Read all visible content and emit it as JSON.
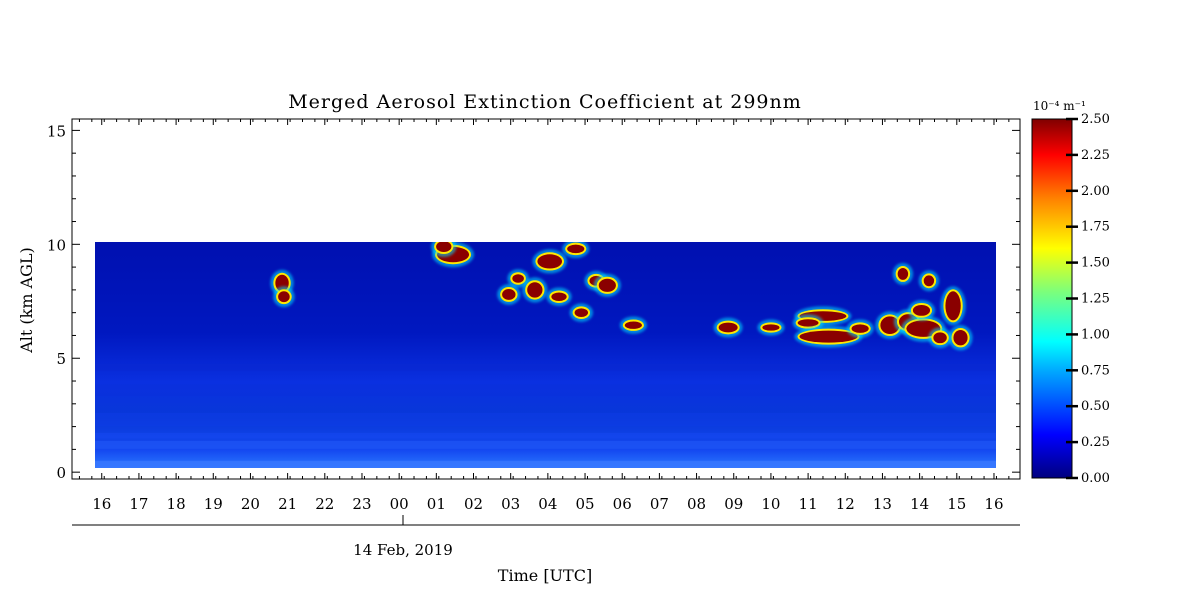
{
  "chart_data": {
    "type": "heatmap",
    "title": "Merged Aerosol Extinction Coefficient at 299nm",
    "xlabel": "Time [UTC]",
    "ylabel": "Alt (km AGL)",
    "date_label": "14 Feb, 2019",
    "x_tick_labels": [
      "16",
      "17",
      "18",
      "19",
      "20",
      "21",
      "22",
      "23",
      "00",
      "01",
      "02",
      "03",
      "04",
      "05",
      "06",
      "07",
      "08",
      "09",
      "10",
      "11",
      "12",
      "13",
      "14",
      "15",
      "16"
    ],
    "x_range_hours": [
      -8.8,
      16.7
    ],
    "y_tick_labels": [
      "0",
      "5",
      "10",
      "15"
    ],
    "y_ticks": [
      0,
      5,
      10,
      15
    ],
    "ylim": [
      -0.3,
      15.5
    ],
    "data_extent": {
      "time_start_hours": -8.3,
      "time_end_hours": 16.1,
      "alt_min_km": 0.1,
      "alt_max_km": 10.0
    },
    "colorbar": {
      "unit": "10⁻⁴ m⁻¹",
      "min": 0.0,
      "max": 2.5,
      "tick_labels": [
        "0.00",
        "0.25",
        "0.50",
        "0.75",
        "1.00",
        "1.25",
        "1.50",
        "1.75",
        "2.00",
        "2.25",
        "2.50"
      ],
      "colormap": "rainbow (dark blue to dark red)"
    },
    "regions": {
      "background_low_alt_extinction": 0.3,
      "background_high_alt_extinction": 0.1,
      "saturated_features": [
        {
          "time_hours": 1.4,
          "alt_km": 9.6,
          "value": 2.5
        },
        {
          "time_hours": 3.1,
          "alt_km": 8.2,
          "value": 2.5
        },
        {
          "time_hours": 3.9,
          "alt_km": 8.6,
          "value": 2.5
        },
        {
          "time_hours": 4.6,
          "alt_km": 9.4,
          "value": 2.5
        },
        {
          "time_hours": 5.5,
          "alt_km": 8.3,
          "value": 2.5
        },
        {
          "time_hours": 6.3,
          "alt_km": 6.5,
          "value": 2.5
        },
        {
          "time_hours": 8.9,
          "alt_km": 6.4,
          "value": 2.5
        },
        {
          "time_hours": 11.5,
          "alt_km": 6.8,
          "value": 2.5
        },
        {
          "time_hours": 11.6,
          "alt_km": 6.0,
          "value": 2.5
        },
        {
          "time_hours": 13.2,
          "alt_km": 6.5,
          "value": 2.5
        },
        {
          "time_hours": 14.0,
          "alt_km": 6.2,
          "value": 2.5
        },
        {
          "time_hours": 14.9,
          "alt_km": 7.0,
          "value": 2.5
        },
        {
          "time_hours": -3.2,
          "alt_km": 8.1,
          "value": 2.5
        }
      ]
    }
  }
}
